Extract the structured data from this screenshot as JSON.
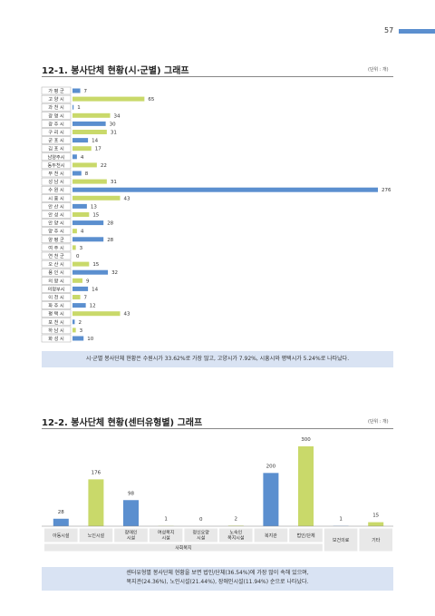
{
  "page": {
    "number": "57",
    "accent": "#5b8fcf",
    "accent_alt": "#c9d96a"
  },
  "section1": {
    "title": "12-1. 봉사단체 현황(시·군별) 그래프",
    "unit": "(단위 : 개)",
    "summary": "시·군별 봉사단체 현황은 수원시가 33.62%로 가장 많고, 고양시가 7.92%, 시흥시와 평택시가 5.24%로 나타났다."
  },
  "section2": {
    "title": "12-2. 봉사단체 현황(센터유형별) 그래프",
    "unit": "(단위 : 개)",
    "summary_line1": "센터유형별 봉사단체 현황을 보면 법인/단체(36.54%)에 가장 많이 속해 있으며,",
    "summary_line2": "복지관(24.36%), 노인시설(21.44%), 장애인시설(11.94%) 순으로 나타났다."
  },
  "chart_data": [
    {
      "type": "bar",
      "orientation": "horizontal",
      "categories": [
        "가 평 군",
        "고 양 시",
        "과 천 시",
        "광 명 시",
        "광 주 시",
        "구 리 시",
        "군 포 시",
        "김 포 시",
        "남양주시",
        "동두천시",
        "부 천 시",
        "성 남 시",
        "수 원 시",
        "시 흥 시",
        "안 산 시",
        "안 성 시",
        "안 양 시",
        "양 주 시",
        "양 평 군",
        "여 주 시",
        "연 천 군",
        "오 산 시",
        "용 인 시",
        "의 왕 시",
        "의정부시",
        "이 천 시",
        "파 주 시",
        "평 택 시",
        "포 천 시",
        "하 남 시",
        "화 성 시"
      ],
      "values": [
        7,
        65,
        1,
        34,
        30,
        31,
        14,
        17,
        4,
        22,
        8,
        31,
        276,
        43,
        13,
        15,
        28,
        4,
        28,
        3,
        0,
        15,
        32,
        9,
        14,
        7,
        12,
        43,
        2,
        3,
        10
      ],
      "colors": [
        "#5b8fcf",
        "#c9d96a"
      ],
      "xlim": [
        0,
        276
      ]
    },
    {
      "type": "bar",
      "categories": [
        "아동시설",
        "노인시설",
        "장애인 시설",
        "여성복지 시설",
        "정신요양 시설",
        "노숙인 복지시설",
        "복지관",
        "법인/단체",
        "보건의료",
        "기타"
      ],
      "values": [
        28,
        176,
        98,
        1,
        0,
        2,
        200,
        300,
        1,
        15
      ],
      "colors": [
        "#5b8fcf",
        "#c9d96a"
      ],
      "group_label": "사회복지",
      "ylim": [
        0,
        300
      ]
    }
  ]
}
